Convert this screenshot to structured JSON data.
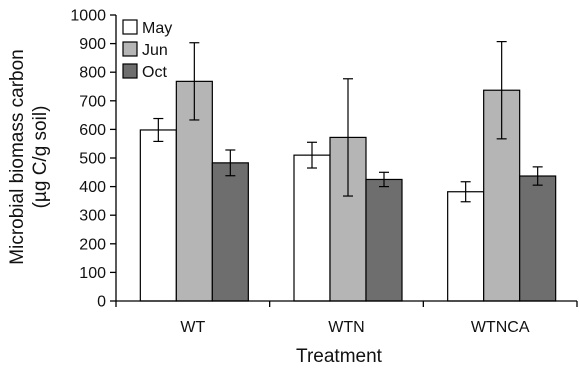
{
  "chart_data": {
    "type": "bar",
    "categories": [
      "WT",
      "WTN",
      "WTNCA"
    ],
    "series": [
      {
        "name": "May",
        "color": "#ffffff",
        "values": [
          598,
          510,
          382
        ],
        "error": [
          40,
          45,
          35
        ]
      },
      {
        "name": "Jun",
        "color": "#b5b5b5",
        "values": [
          768,
          572,
          737
        ],
        "error": [
          135,
          205,
          170
        ]
      },
      {
        "name": "Oct",
        "color": "#6e6e6e",
        "values": [
          483,
          425,
          437
        ],
        "error": [
          45,
          25,
          32
        ]
      }
    ],
    "xlabel": "Treatment",
    "ylabel_line1": "Microbial biomass carbon",
    "ylabel_line2": "(µg C/g soil)",
    "ylim": [
      0,
      1000
    ],
    "yticks": [
      0,
      100,
      200,
      300,
      400,
      500,
      600,
      700,
      800,
      900,
      1000
    ],
    "legend_position": "top-left",
    "grid": false
  }
}
